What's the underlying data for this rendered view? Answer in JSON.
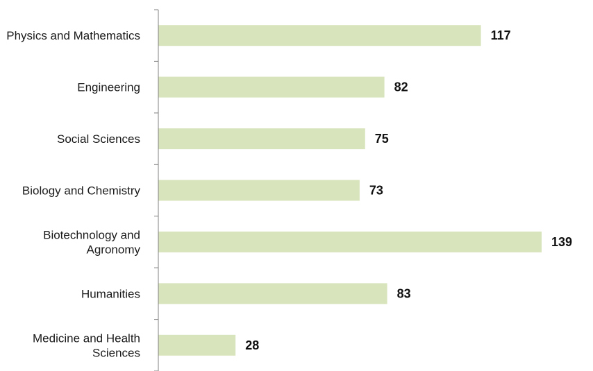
{
  "chart_data": {
    "type": "bar",
    "orientation": "horizontal",
    "title": "",
    "xlabel": "",
    "ylabel": "",
    "categories": [
      [
        "Physics and Mathematics"
      ],
      [
        "Engineering"
      ],
      [
        "Social Sciences"
      ],
      [
        "Biology and Chemistry"
      ],
      [
        "Biotechnology and",
        "Agronomy"
      ],
      [
        "Humanities"
      ],
      [
        "Medicine and Health",
        "Sciences"
      ]
    ],
    "values": [
      117,
      82,
      75,
      73,
      139,
      83,
      28
    ],
    "xlim": [
      0,
      139
    ],
    "bar_color": "#d8e4bc",
    "axis_color": "#808080",
    "grid": false,
    "legend": "none",
    "data_labels": true
  }
}
